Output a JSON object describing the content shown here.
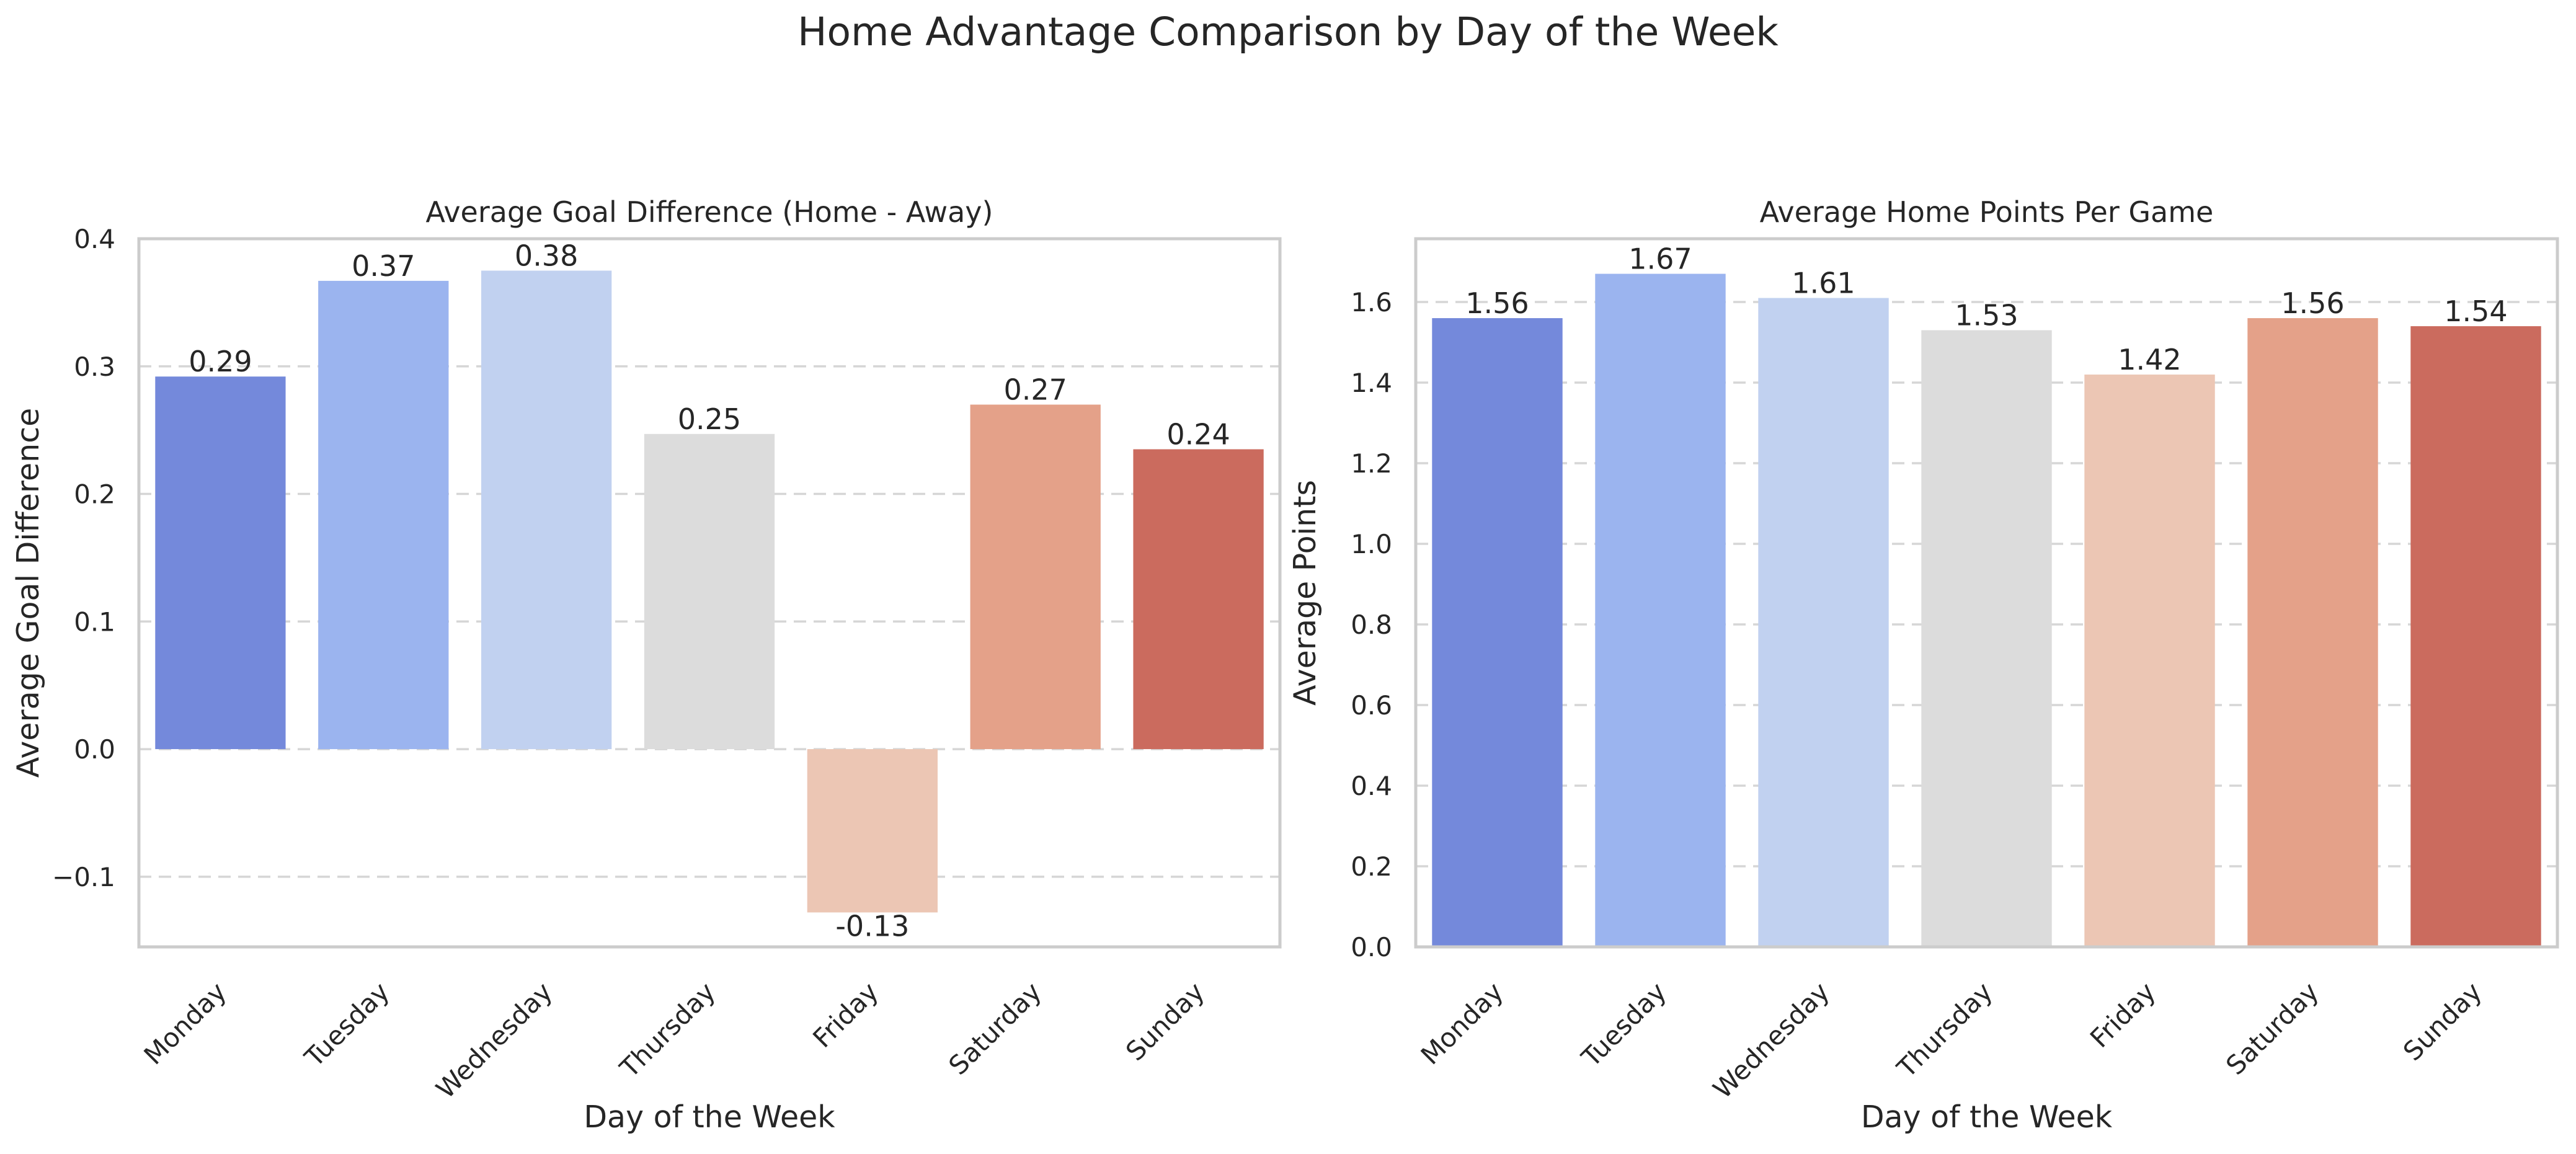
{
  "figure": {
    "title": "Home Advantage Comparison by Day of the Week"
  },
  "chart_data": [
    {
      "type": "bar",
      "title": "Average Goal Difference (Home - Away)",
      "xlabel": "Day of the Week",
      "ylabel": "Average Goal Difference",
      "categories": [
        "Monday",
        "Tuesday",
        "Wednesday",
        "Thursday",
        "Friday",
        "Saturday",
        "Sunday"
      ],
      "values": [
        0.292,
        0.367,
        0.375,
        0.247,
        -0.128,
        0.27,
        0.235
      ],
      "value_labels": [
        "0.29",
        "0.37",
        "0.38",
        "0.25",
        "-0.13",
        "0.27",
        "0.24"
      ],
      "ylim": [
        -0.155,
        0.4
      ],
      "yticks": [
        -0.1,
        0.0,
        0.1,
        0.2,
        0.3,
        0.4
      ],
      "ytick_labels": [
        "−0.1",
        "0.0",
        "0.1",
        "0.2",
        "0.3",
        "0.4"
      ],
      "grid": "y, dashed",
      "colors": [
        "#7489db",
        "#9bb4ef",
        "#c1d1f0",
        "#dcdcdc",
        "#ecc6b4",
        "#e4a189",
        "#cb6b5e"
      ]
    },
    {
      "type": "bar",
      "title": "Average Home Points Per Game",
      "xlabel": "Day of the Week",
      "ylabel": "Average Points",
      "categories": [
        "Monday",
        "Tuesday",
        "Wednesday",
        "Thursday",
        "Friday",
        "Saturday",
        "Sunday"
      ],
      "values": [
        1.56,
        1.67,
        1.61,
        1.53,
        1.42,
        1.56,
        1.54
      ],
      "value_labels": [
        "1.56",
        "1.67",
        "1.61",
        "1.53",
        "1.42",
        "1.56",
        "1.54"
      ],
      "ylim": [
        0,
        1.757
      ],
      "yticks": [
        0.0,
        0.2,
        0.4,
        0.6,
        0.8,
        1.0,
        1.2,
        1.4,
        1.6
      ],
      "ytick_labels": [
        "0.0",
        "0.2",
        "0.4",
        "0.6",
        "0.8",
        "1.0",
        "1.2",
        "1.4",
        "1.6"
      ],
      "grid": "y, dashed",
      "colors": [
        "#7489db",
        "#9bb4ef",
        "#c1d1f0",
        "#dcdcdc",
        "#ecc6b4",
        "#e4a189",
        "#cb6b5e"
      ]
    }
  ]
}
